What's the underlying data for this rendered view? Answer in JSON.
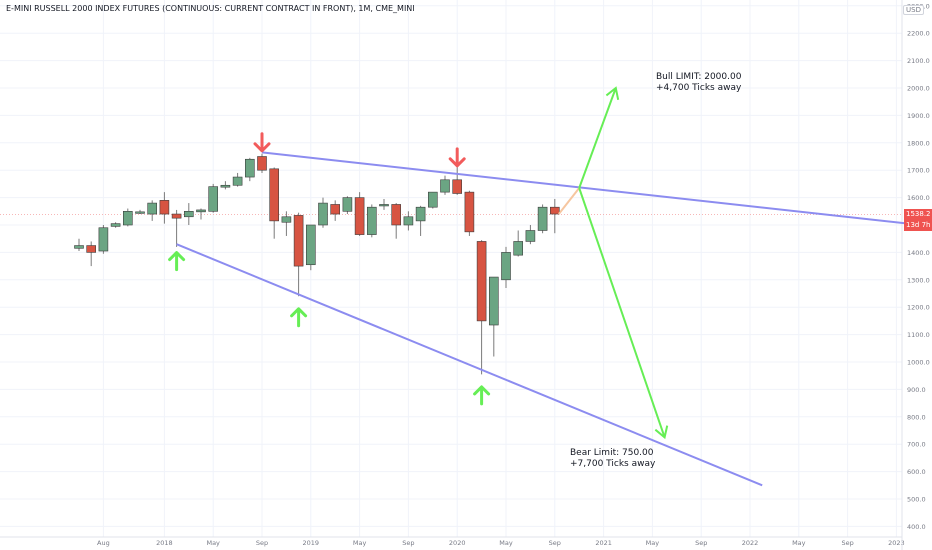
{
  "symbol_title": "E-MINI RUSSELL 2000 INDEX FUTURES (CONTINUOUS: CURRENT CONTRACT IN FRONT), 1M, CME_MINI",
  "currency": "USD",
  "price_tag": {
    "value": "1538.2",
    "countdown": "13d 7h",
    "color": "#ef5350"
  },
  "annotations": {
    "bull_title": "Bull LIMIT: 2000.00",
    "bull_sub": "+4,700 Ticks away",
    "bear_title": "Bear Limit: 750.00",
    "bear_sub": "+7,700 Ticks away"
  },
  "colors": {
    "up_candle": "#6ba583",
    "down_candle": "#d75442",
    "trendline": "#8c8cf0",
    "projection": "#66ee55",
    "up_arrow": "#66ee55",
    "down_arrow": "#f25b5b",
    "grid": "#f0f3fa",
    "current_price_line": "#f5a0a0"
  },
  "chart_data": {
    "type": "candlestick",
    "title": "E-MINI RUSSELL 2000 INDEX FUTURES (CONTINUOUS: CURRENT CONTRACT IN FRONT), 1M, CME_MINI",
    "timeframe": "1M",
    "ylim": [
      400,
      2300
    ],
    "x_tick_labels": [
      "Aug",
      "2018",
      "May",
      "Sep",
      "2019",
      "May",
      "Sep",
      "2020",
      "May",
      "Sep",
      "2021",
      "May",
      "Sep",
      "2022",
      "May",
      "Sep",
      "2023"
    ],
    "y_tick_labels": [
      "400.0",
      "500.0",
      "600.0",
      "700.0",
      "800.0",
      "900.0",
      "1000.0",
      "1100.0",
      "1200.0",
      "1300.0",
      "1400.0",
      "1500.0",
      "1600.0",
      "1700.0",
      "1800.0",
      "1900.0",
      "2000.0",
      "2100.0",
      "2200.0",
      "2300.0"
    ],
    "candles": [
      {
        "date": "2017-06",
        "o": 1415,
        "h": 1450,
        "l": 1405,
        "c": 1425
      },
      {
        "date": "2017-07",
        "o": 1425,
        "h": 1440,
        "l": 1350,
        "c": 1400
      },
      {
        "date": "2017-08",
        "o": 1405,
        "h": 1500,
        "l": 1395,
        "c": 1490
      },
      {
        "date": "2017-09",
        "o": 1495,
        "h": 1510,
        "l": 1490,
        "c": 1505
      },
      {
        "date": "2017-10",
        "o": 1500,
        "h": 1560,
        "l": 1495,
        "c": 1550
      },
      {
        "date": "2017-11",
        "o": 1545,
        "h": 1555,
        "l": 1540,
        "c": 1548
      },
      {
        "date": "2017-12",
        "o": 1540,
        "h": 1590,
        "l": 1515,
        "c": 1580
      },
      {
        "date": "2018-01",
        "o": 1590,
        "h": 1620,
        "l": 1505,
        "c": 1540
      },
      {
        "date": "2018-02",
        "o": 1540,
        "h": 1555,
        "l": 1420,
        "c": 1525
      },
      {
        "date": "2018-03",
        "o": 1530,
        "h": 1580,
        "l": 1500,
        "c": 1550
      },
      {
        "date": "2018-04",
        "o": 1548,
        "h": 1560,
        "l": 1520,
        "c": 1555
      },
      {
        "date": "2018-05",
        "o": 1550,
        "h": 1650,
        "l": 1545,
        "c": 1640
      },
      {
        "date": "2018-06",
        "o": 1638,
        "h": 1660,
        "l": 1630,
        "c": 1645
      },
      {
        "date": "2018-07",
        "o": 1645,
        "h": 1690,
        "l": 1640,
        "c": 1675
      },
      {
        "date": "2018-08",
        "o": 1675,
        "h": 1745,
        "l": 1660,
        "c": 1740
      },
      {
        "date": "2018-09",
        "o": 1750,
        "h": 1760,
        "l": 1690,
        "c": 1700
      },
      {
        "date": "2018-10",
        "o": 1705,
        "h": 1710,
        "l": 1450,
        "c": 1515
      },
      {
        "date": "2018-11",
        "o": 1510,
        "h": 1550,
        "l": 1460,
        "c": 1530
      },
      {
        "date": "2018-12",
        "o": 1535,
        "h": 1545,
        "l": 1240,
        "c": 1350
      },
      {
        "date": "2019-01",
        "o": 1355,
        "h": 1500,
        "l": 1335,
        "c": 1500
      },
      {
        "date": "2019-02",
        "o": 1500,
        "h": 1600,
        "l": 1490,
        "c": 1580
      },
      {
        "date": "2019-03",
        "o": 1575,
        "h": 1590,
        "l": 1515,
        "c": 1540
      },
      {
        "date": "2019-04",
        "o": 1550,
        "h": 1605,
        "l": 1540,
        "c": 1600
      },
      {
        "date": "2019-05",
        "o": 1600,
        "h": 1620,
        "l": 1460,
        "c": 1465
      },
      {
        "date": "2019-06",
        "o": 1465,
        "h": 1575,
        "l": 1455,
        "c": 1565
      },
      {
        "date": "2019-07",
        "o": 1570,
        "h": 1595,
        "l": 1555,
        "c": 1575
      },
      {
        "date": "2019-08",
        "o": 1575,
        "h": 1580,
        "l": 1450,
        "c": 1500
      },
      {
        "date": "2019-09",
        "o": 1500,
        "h": 1550,
        "l": 1480,
        "c": 1530
      },
      {
        "date": "2019-10",
        "o": 1515,
        "h": 1570,
        "l": 1460,
        "c": 1565
      },
      {
        "date": "2019-11",
        "o": 1565,
        "h": 1620,
        "l": 1560,
        "c": 1620
      },
      {
        "date": "2019-12",
        "o": 1620,
        "h": 1680,
        "l": 1610,
        "c": 1665
      },
      {
        "date": "2020-01",
        "o": 1665,
        "h": 1720,
        "l": 1610,
        "c": 1615
      },
      {
        "date": "2020-02",
        "o": 1620,
        "h": 1625,
        "l": 1460,
        "c": 1475
      },
      {
        "date": "2020-03",
        "o": 1440,
        "h": 1445,
        "l": 955,
        "c": 1150
      },
      {
        "date": "2020-04",
        "o": 1135,
        "h": 1310,
        "l": 1020,
        "c": 1310
      },
      {
        "date": "2020-05",
        "o": 1300,
        "h": 1420,
        "l": 1270,
        "c": 1400
      },
      {
        "date": "2020-06",
        "o": 1390,
        "h": 1480,
        "l": 1385,
        "c": 1440
      },
      {
        "date": "2020-07",
        "o": 1440,
        "h": 1500,
        "l": 1430,
        "c": 1480
      },
      {
        "date": "2020-08",
        "o": 1480,
        "h": 1575,
        "l": 1470,
        "c": 1565
      },
      {
        "date": "2020-09",
        "o": 1565,
        "h": 1595,
        "l": 1470,
        "c": 1540
      }
    ],
    "trendlines": [
      {
        "name": "upper",
        "from": {
          "date": "2018-09",
          "price": 1765
        },
        "to": {
          "date": "2023-03",
          "price": 1500
        }
      },
      {
        "name": "lower",
        "from": {
          "date": "2018-02",
          "price": 1430
        },
        "to": {
          "date": "2022-02",
          "price": 550
        }
      }
    ],
    "projections": [
      {
        "name": "bull",
        "from": {
          "date": "2020-11",
          "price": 1635
        },
        "to": {
          "date": "2021-02",
          "price": 2000
        }
      },
      {
        "name": "bear",
        "from": {
          "date": "2020-11",
          "price": 1635
        },
        "to": {
          "date": "2021-06",
          "price": 725
        }
      }
    ],
    "signals": [
      {
        "dir": "down",
        "date": "2018-09",
        "price": 1800
      },
      {
        "dir": "down",
        "date": "2020-01",
        "price": 1745
      },
      {
        "dir": "up",
        "date": "2018-02",
        "price": 1370
      },
      {
        "dir": "up",
        "date": "2018-12",
        "price": 1165
      },
      {
        "dir": "up",
        "date": "2020-03",
        "price": 880
      }
    ],
    "current_price": 1538.2,
    "grid": true
  }
}
